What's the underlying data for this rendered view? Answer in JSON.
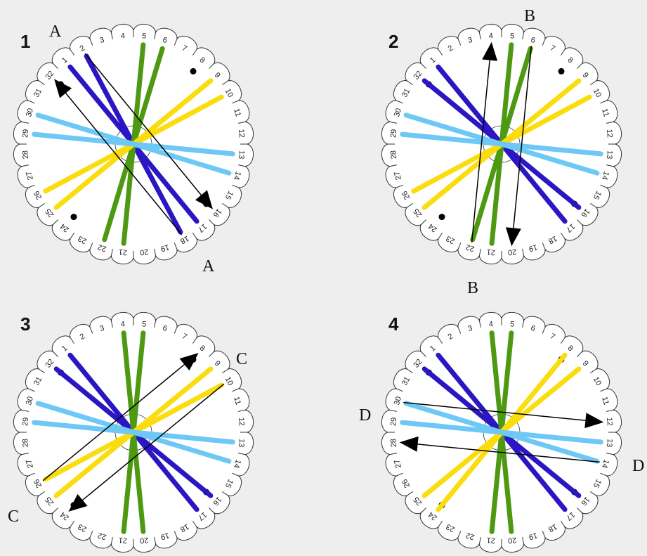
{
  "colors": {
    "background": "#eeeeee",
    "disk_fill": "#ffffff",
    "outline": "#333333",
    "blue": "#2a16c2",
    "light_blue": "#6ec8f6",
    "yellow": "#fbdc0c",
    "green": "#4d9a12",
    "arrow": "#000000",
    "dot": "#000000"
  },
  "slot_count": 32,
  "dot_slots": [
    8,
    16,
    24,
    32
  ],
  "panels": [
    {
      "number": "1",
      "threads": [
        {
          "color": "blue",
          "from": 2,
          "to": 18
        },
        {
          "color": "blue",
          "from": 1,
          "to": 17
        },
        {
          "color": "green",
          "from": 5,
          "to": 21
        },
        {
          "color": "green",
          "from": 6,
          "to": 22
        },
        {
          "color": "yellow",
          "from": 9,
          "to": 25
        },
        {
          "color": "yellow",
          "from": 10,
          "to": 26
        },
        {
          "color": "light_blue",
          "from": 29,
          "to": 13
        },
        {
          "color": "light_blue",
          "from": 30,
          "to": 14
        }
      ],
      "arrows": [
        {
          "from": 2,
          "to": 16
        },
        {
          "from": 18,
          "to": 32
        }
      ],
      "labels": [
        "A",
        "A"
      ]
    },
    {
      "number": "2",
      "threads": [
        {
          "color": "blue",
          "from": 32,
          "to": 16
        },
        {
          "color": "blue",
          "from": 1,
          "to": 17
        },
        {
          "color": "green",
          "from": 5,
          "to": 21
        },
        {
          "color": "green",
          "from": 6,
          "to": 22
        },
        {
          "color": "yellow",
          "from": 9,
          "to": 25
        },
        {
          "color": "yellow",
          "from": 10,
          "to": 26
        },
        {
          "color": "light_blue",
          "from": 29,
          "to": 13
        },
        {
          "color": "light_blue",
          "from": 30,
          "to": 14
        }
      ],
      "arrows": [
        {
          "from": 22,
          "to": 4
        },
        {
          "from": 6,
          "to": 20
        }
      ],
      "labels": [
        "B",
        "B"
      ]
    },
    {
      "number": "3",
      "threads": [
        {
          "color": "blue",
          "from": 32,
          "to": 16
        },
        {
          "color": "blue",
          "from": 1,
          "to": 17
        },
        {
          "color": "green",
          "from": 4,
          "to": 20
        },
        {
          "color": "green",
          "from": 5,
          "to": 21
        },
        {
          "color": "yellow",
          "from": 9,
          "to": 25
        },
        {
          "color": "yellow",
          "from": 10,
          "to": 26
        },
        {
          "color": "light_blue",
          "from": 29,
          "to": 13
        },
        {
          "color": "light_blue",
          "from": 30,
          "to": 14
        }
      ],
      "arrows": [
        {
          "from": 26,
          "to": 8
        },
        {
          "from": 10,
          "to": 24
        }
      ],
      "labels": [
        "C",
        "C"
      ]
    },
    {
      "number": "4",
      "threads": [
        {
          "color": "blue",
          "from": 32,
          "to": 16
        },
        {
          "color": "blue",
          "from": 1,
          "to": 17
        },
        {
          "color": "green",
          "from": 4,
          "to": 20
        },
        {
          "color": "green",
          "from": 5,
          "to": 21
        },
        {
          "color": "yellow",
          "from": 8,
          "to": 24
        },
        {
          "color": "yellow",
          "from": 9,
          "to": 25
        },
        {
          "color": "light_blue",
          "from": 29,
          "to": 13
        },
        {
          "color": "light_blue",
          "from": 30,
          "to": 14
        }
      ],
      "arrows": [
        {
          "from": 30,
          "to": 12
        },
        {
          "from": 14,
          "to": 28
        }
      ],
      "labels": [
        "D",
        "D"
      ]
    }
  ]
}
